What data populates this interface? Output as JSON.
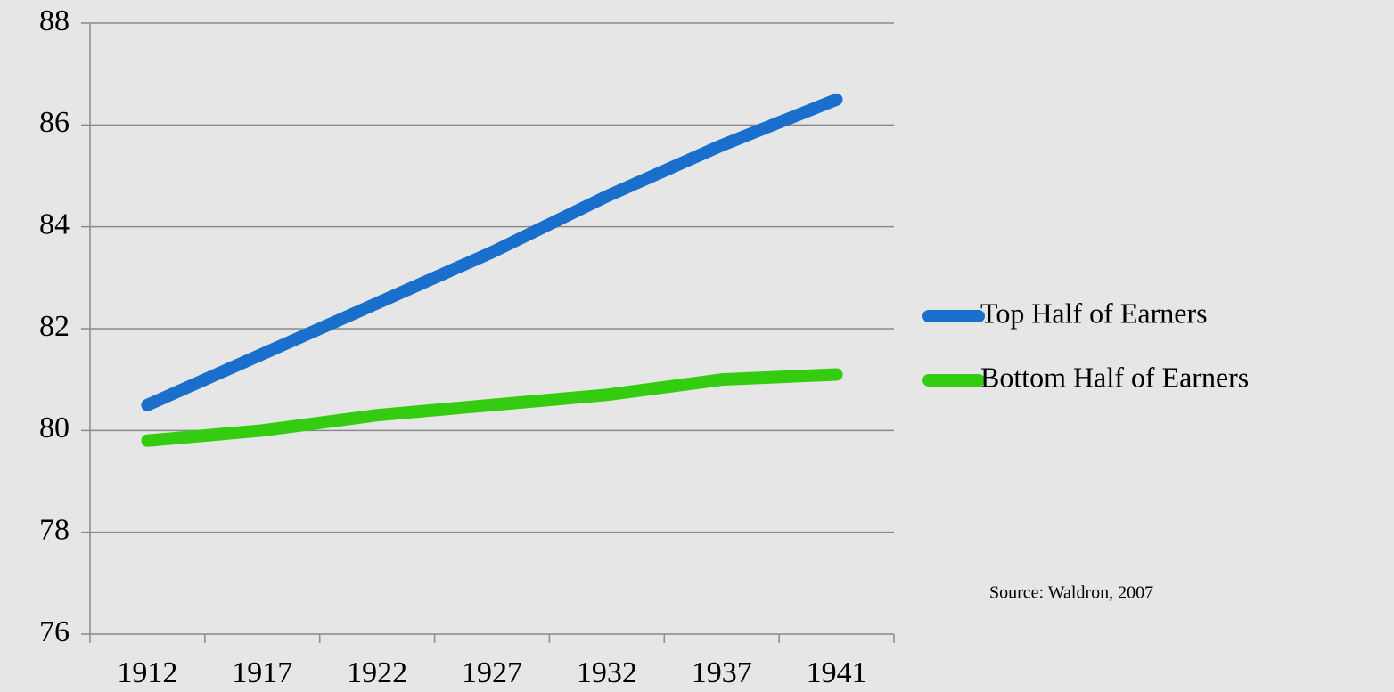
{
  "chart_data": {
    "type": "line",
    "categories": [
      "1912",
      "1917",
      "1922",
      "1927",
      "1932",
      "1937",
      "1941"
    ],
    "series": [
      {
        "name": "Top Half of Earners",
        "color": "#1a6fcc",
        "values": [
          80.5,
          81.5,
          82.5,
          83.5,
          84.6,
          85.6,
          86.5
        ]
      },
      {
        "name": "Bottom Half of Earners",
        "color": "#33cc11",
        "values": [
          79.8,
          80.0,
          80.3,
          80.5,
          80.7,
          81.0,
          81.1
        ]
      }
    ],
    "ylim": [
      76,
      88
    ],
    "yticks": [
      76,
      78,
      80,
      82,
      84,
      86,
      88
    ],
    "grid": true,
    "legend": "right",
    "annotation": "Source:  Waldron, 2007"
  }
}
